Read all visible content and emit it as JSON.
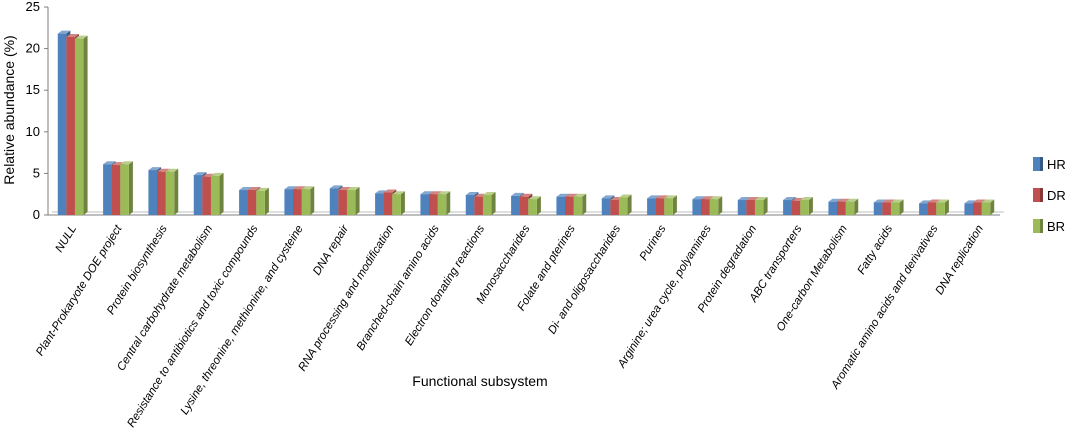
{
  "chart_data": {
    "type": "bar",
    "title": "",
    "xlabel": "Functional subsystem",
    "ylabel": "Relative abundance (%)",
    "ylim": [
      0,
      25
    ],
    "yticks": [
      0,
      5,
      10,
      15,
      20,
      25
    ],
    "grid": false,
    "legend_position": "right",
    "categories": [
      "NULL",
      "Plant-Prokaryote DOE project",
      "Protein biosynthesis",
      "Central carbohydrate metabolism",
      "Resistance to antibiotics and toxic compounds",
      "Lysine, threonine, methionine, and cysteine",
      "DNA repair",
      "RNA processing and modification",
      "Branched-chain amino acids",
      "Electron donating reactions",
      "Monosaccharides",
      "Folate and pterines",
      "Di- and oligosaccharides",
      "Purines",
      "Arginine; urea cycle, polyamines",
      "Protein degradation",
      "ABC transporters",
      "One-carbon Metabolism",
      "Fatty acids",
      "Aromatic amino acids and derivatives",
      "DNA replication"
    ],
    "series": [
      {
        "name": "HR",
        "color": "#4F81BD",
        "values": [
          21.8,
          6.1,
          5.4,
          4.8,
          3.0,
          3.1,
          3.2,
          2.6,
          2.5,
          2.4,
          2.3,
          2.2,
          2.0,
          2.0,
          1.9,
          1.8,
          1.8,
          1.6,
          1.5,
          1.4,
          1.4
        ]
      },
      {
        "name": "DR",
        "color": "#C0504D",
        "values": [
          21.4,
          6.0,
          5.2,
          4.6,
          3.0,
          3.1,
          3.0,
          2.7,
          2.5,
          2.2,
          2.2,
          2.2,
          1.8,
          2.0,
          1.9,
          1.8,
          1.7,
          1.6,
          1.5,
          1.5,
          1.5
        ]
      },
      {
        "name": "BR",
        "color": "#9BBB59",
        "values": [
          21.2,
          6.1,
          5.2,
          4.7,
          2.9,
          3.1,
          3.0,
          2.5,
          2.5,
          2.4,
          1.9,
          2.2,
          2.1,
          2.0,
          1.9,
          1.8,
          1.8,
          1.6,
          1.5,
          1.5,
          1.5
        ]
      }
    ]
  }
}
